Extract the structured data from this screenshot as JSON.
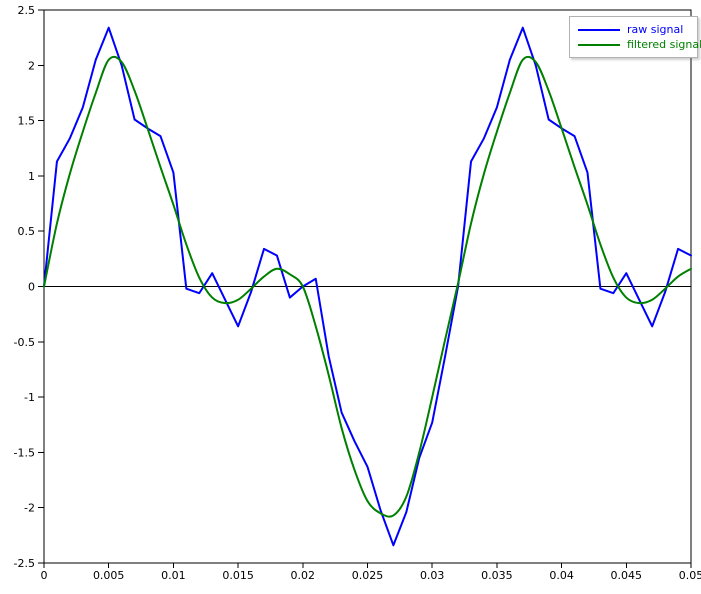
{
  "chart_data": {
    "type": "line",
    "title": "",
    "xlabel": "",
    "ylabel": "",
    "xlim": [
      0,
      0.05
    ],
    "ylim": [
      -2.5,
      2.5
    ],
    "grid": false,
    "zero_line": true,
    "legend_position": "top-right",
    "x_ticks": [
      0,
      0.005,
      0.01,
      0.015,
      0.02,
      0.025,
      0.03,
      0.035,
      0.04,
      0.045,
      0.05
    ],
    "x_tick_labels": [
      "0",
      "0.005",
      "0.01",
      "0.015",
      "0.02",
      "0.025",
      "0.03",
      "0.035",
      "0.04",
      "0.045",
      "0.05"
    ],
    "y_ticks": [
      -2.5,
      -2,
      -1.5,
      -1,
      -0.5,
      0,
      0.5,
      1,
      1.5,
      2,
      2.5
    ],
    "y_tick_labels": [
      "-2.5",
      "-2",
      "-1.5",
      "-1",
      "-0.5",
      "0",
      "0.5",
      "1",
      "1.5",
      "2",
      "2.5"
    ],
    "x": [
      0,
      0.001,
      0.002,
      0.003,
      0.004,
      0.005,
      0.006,
      0.007,
      0.008,
      0.009,
      0.01,
      0.011,
      0.012,
      0.013,
      0.014,
      0.015,
      0.016,
      0.017,
      0.018,
      0.019,
      0.02,
      0.021,
      0.022,
      0.023,
      0.024,
      0.025,
      0.026,
      0.027,
      0.028,
      0.029,
      0.03,
      0.031,
      0.032,
      0.033,
      0.034,
      0.035,
      0.036,
      0.037,
      0.038,
      0.039,
      0.04,
      0.041,
      0.042,
      0.043,
      0.044,
      0.045,
      0.046,
      0.047,
      0.048,
      0.049,
      0.05
    ],
    "series": [
      {
        "name": "raw signal",
        "color": "#0000ff",
        "smooth": false,
        "values": [
          0.0,
          1.13,
          1.34,
          1.62,
          2.05,
          2.34,
          2.0,
          1.51,
          1.43,
          1.36,
          1.03,
          -0.02,
          -0.06,
          0.12,
          -0.12,
          -0.36,
          -0.05,
          0.34,
          0.28,
          -0.1,
          0.0,
          0.07,
          -0.63,
          -1.14,
          -1.4,
          -1.63,
          -2.02,
          -2.34,
          -2.04,
          -1.55,
          -1.23,
          -0.63,
          0.0,
          1.13,
          1.34,
          1.62,
          2.05,
          2.34,
          2.0,
          1.51,
          1.43,
          1.36,
          1.03,
          -0.02,
          -0.06,
          0.12,
          -0.12,
          -0.36,
          -0.05,
          0.34,
          0.28
        ]
      },
      {
        "name": "filtered signal",
        "color": "#008000",
        "smooth": true,
        "values": [
          0.0,
          0.57,
          1.02,
          1.4,
          1.75,
          2.05,
          2.03,
          1.77,
          1.43,
          1.08,
          0.74,
          0.38,
          0.08,
          -0.1,
          -0.15,
          -0.12,
          -0.02,
          0.09,
          0.16,
          0.11,
          0.0,
          -0.36,
          -0.8,
          -1.28,
          -1.66,
          -1.94,
          -2.05,
          -2.07,
          -1.9,
          -1.5,
          -1.0,
          -0.48,
          0.03,
          0.57,
          1.02,
          1.4,
          1.75,
          2.05,
          2.03,
          1.77,
          1.43,
          1.08,
          0.74,
          0.38,
          0.08,
          -0.1,
          -0.15,
          -0.12,
          -0.02,
          0.09,
          0.16
        ]
      }
    ]
  }
}
